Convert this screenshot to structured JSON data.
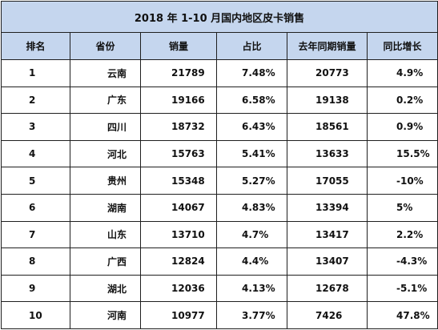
{
  "table": {
    "title": "2018 年 1-10 月国内地区皮卡销售",
    "headers": [
      "排名",
      "省份",
      "销量",
      "占比",
      "去年同期销量",
      "同比增长"
    ],
    "rows": [
      {
        "rank": "1",
        "province": "云南",
        "sales": "21789",
        "share": "7.48%",
        "prev_sales": "20773",
        "growth": "4.9%"
      },
      {
        "rank": "2",
        "province": "广东",
        "sales": "19166",
        "share": "6.58%",
        "prev_sales": "19138",
        "growth": "0.2%"
      },
      {
        "rank": "3",
        "province": "四川",
        "sales": "18732",
        "share": "6.43%",
        "prev_sales": "18561",
        "growth": "0.9%"
      },
      {
        "rank": "4",
        "province": "河北",
        "sales": "15763",
        "share": "5.41%",
        "prev_sales": "13633",
        "growth": "15.5%"
      },
      {
        "rank": "5",
        "province": "贵州",
        "sales": "15348",
        "share": "5.27%",
        "prev_sales": "17055",
        "growth": "-10%"
      },
      {
        "rank": "6",
        "province": "湖南",
        "sales": "14067",
        "share": "4.83%",
        "prev_sales": "13394",
        "growth": "5%"
      },
      {
        "rank": "7",
        "province": "山东",
        "sales": "13710",
        "share": "4.7%",
        "prev_sales": "13417",
        "growth": "2.2%"
      },
      {
        "rank": "8",
        "province": "广西",
        "sales": "12824",
        "share": "4.4%",
        "prev_sales": "13407",
        "growth": "-4.3%"
      },
      {
        "rank": "9",
        "province": "湖北",
        "sales": "12036",
        "share": "4.13%",
        "prev_sales": "12678",
        "growth": "-5.1%"
      },
      {
        "rank": "10",
        "province": "河南",
        "sales": "10977",
        "share": "3.77%",
        "prev_sales": "7426",
        "growth": "47.8%"
      }
    ]
  },
  "colors": {
    "header_bg": "#c5d6ee",
    "border": "#1f1f1f"
  }
}
